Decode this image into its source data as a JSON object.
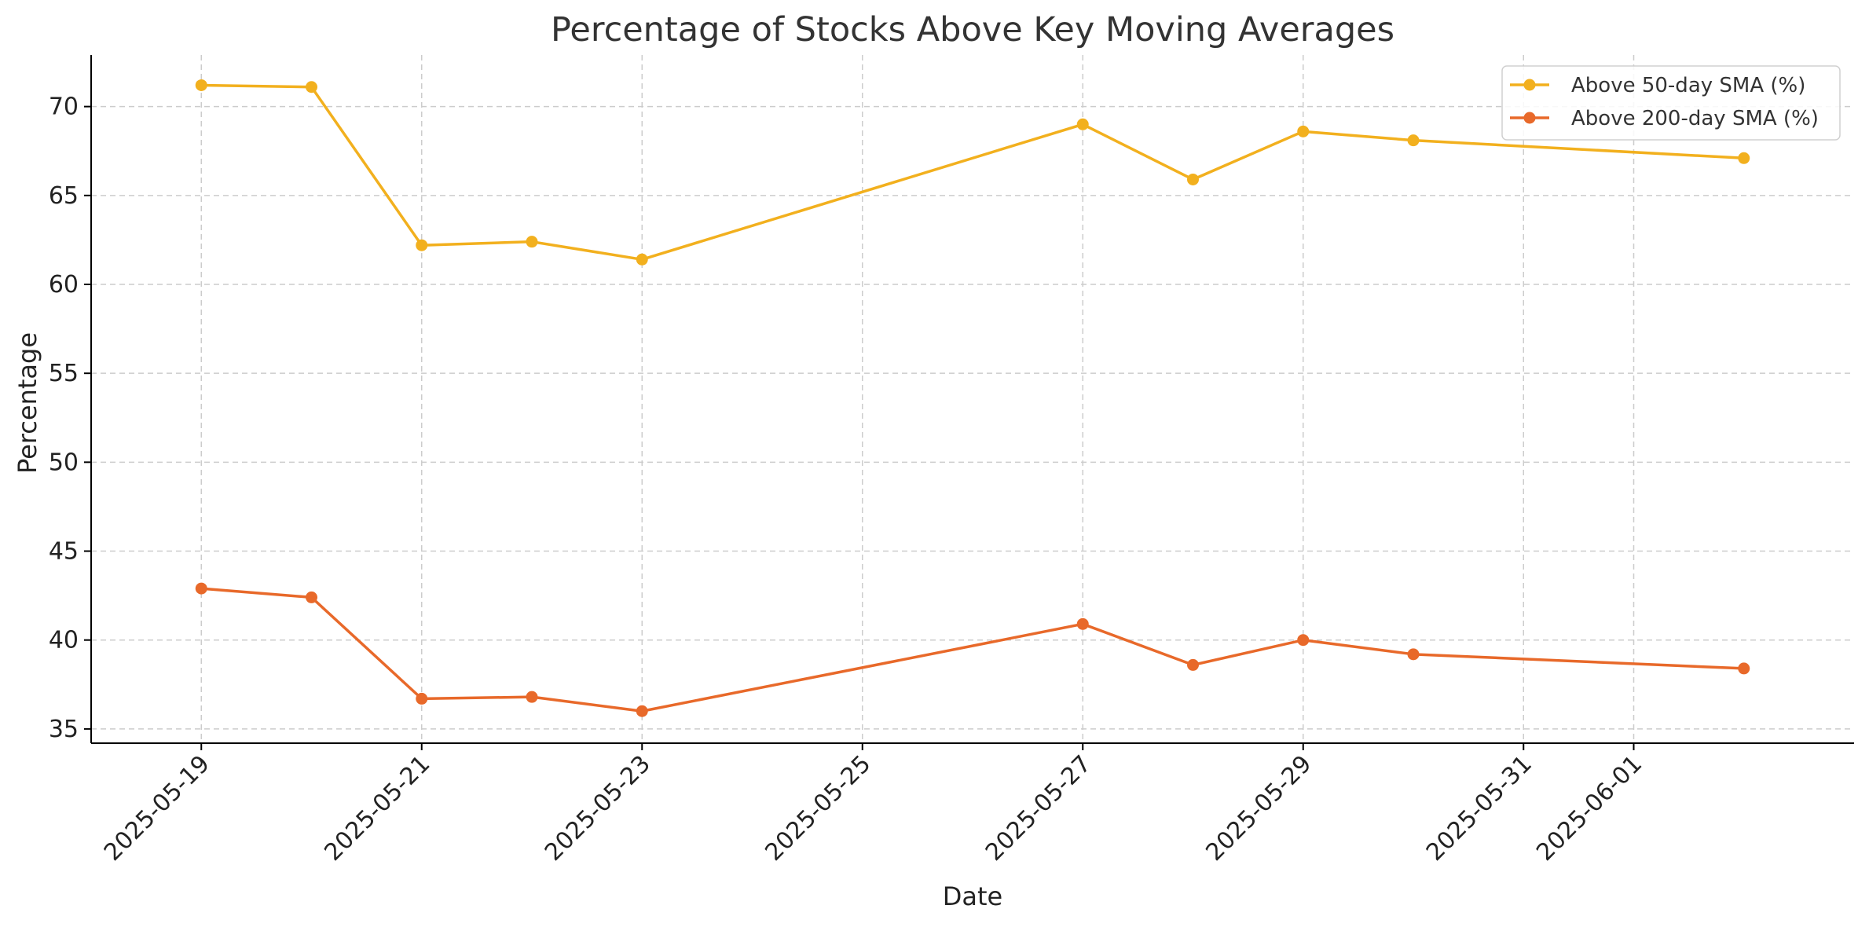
{
  "chart_data": {
    "type": "line",
    "title": "Percentage of Stocks Above Key Moving Averages",
    "xlabel": "Date",
    "ylabel": "Percentage",
    "x": [
      "2025-05-19",
      "2025-05-20",
      "2025-05-21",
      "2025-05-22",
      "2025-05-23",
      "2025-05-27",
      "2025-05-28",
      "2025-05-29",
      "2025-05-30",
      "2025-06-02"
    ],
    "x_ticks": [
      "2025-05-19",
      "2025-05-21",
      "2025-05-23",
      "2025-05-25",
      "2025-05-27",
      "2025-05-29",
      "2025-05-31",
      "2025-06-01"
    ],
    "xlim": [
      "2025-05-18",
      "2025-06-03"
    ],
    "y_ticks": [
      35,
      40,
      45,
      50,
      55,
      60,
      65,
      70
    ],
    "ylim": [
      34.2,
      72.9
    ],
    "grid": true,
    "legend_position": "top-right",
    "series": [
      {
        "name": "Above 50-day SMA (%)",
        "color": "#F2B01E",
        "values": [
          71.2,
          71.1,
          62.2,
          62.4,
          61.4,
          69.0,
          65.9,
          68.6,
          68.1,
          67.1
        ]
      },
      {
        "name": "Above 200-day SMA (%)",
        "color": "#E8692A",
        "values": [
          42.9,
          42.4,
          36.7,
          36.8,
          36.0,
          40.9,
          38.6,
          40.0,
          39.2,
          38.4
        ]
      }
    ]
  }
}
